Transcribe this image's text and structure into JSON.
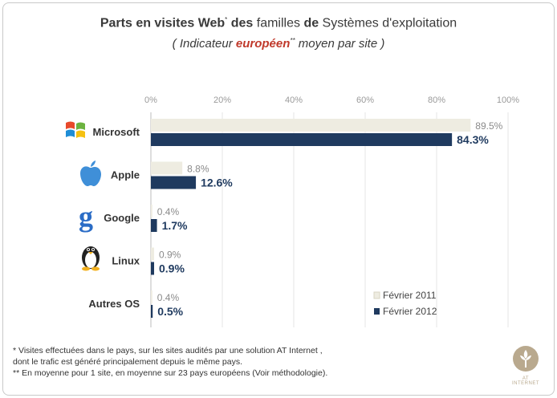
{
  "title": {
    "part1": "Parts en visites Web",
    "sup1": "*",
    "part2": " des",
    "part3": " familles ",
    "part4": "de",
    "part5": " Systèmes d'exploitation"
  },
  "subtitle": {
    "part1": "( Indicateur ",
    "eu": "européen",
    "sup": "**",
    "part2": " moyen par site )"
  },
  "chart_data": {
    "type": "bar",
    "orientation": "horizontal",
    "categories": [
      "Microsoft",
      "Apple",
      "Google",
      "Linux",
      "Autres OS"
    ],
    "series": [
      {
        "name": "Février 2011",
        "values": [
          89.5,
          8.8,
          0.4,
          0.9,
          0.4
        ],
        "labels": [
          "89.5%",
          "8.8%",
          "0.4%",
          "0.9%",
          "0.4%"
        ],
        "color": "#eeece1"
      },
      {
        "name": "Février 2012",
        "values": [
          84.3,
          12.6,
          1.7,
          0.9,
          0.5
        ],
        "labels": [
          "84.3%",
          "12.6%",
          "1.7%",
          "0.9%",
          "0.5%"
        ],
        "color": "#1f3a5f"
      }
    ],
    "xlim": [
      0,
      100
    ],
    "xticks": [
      "0%",
      "20%",
      "40%",
      "60%",
      "80%",
      "100%"
    ],
    "axis_position": "top",
    "legend_position": "bottom-right",
    "grid": true
  },
  "icons": [
    "windows-logo-icon",
    "apple-logo-icon",
    "google-logo-icon",
    "linux-tux-icon"
  ],
  "notes": {
    "line1": "*    Visites effectuées dans le pays, sur les sites audités par une solution AT Internet ,",
    "line2": "dont le trafic est généré principalement depuis le même pays.",
    "line3": "**  En moyenne pour 1 site, en moyenne sur 23 pays européens ",
    "line3b": "(Voir méthodologie)."
  },
  "logo": {
    "text": "AT INTERNET",
    "color": "#b9a98e"
  }
}
